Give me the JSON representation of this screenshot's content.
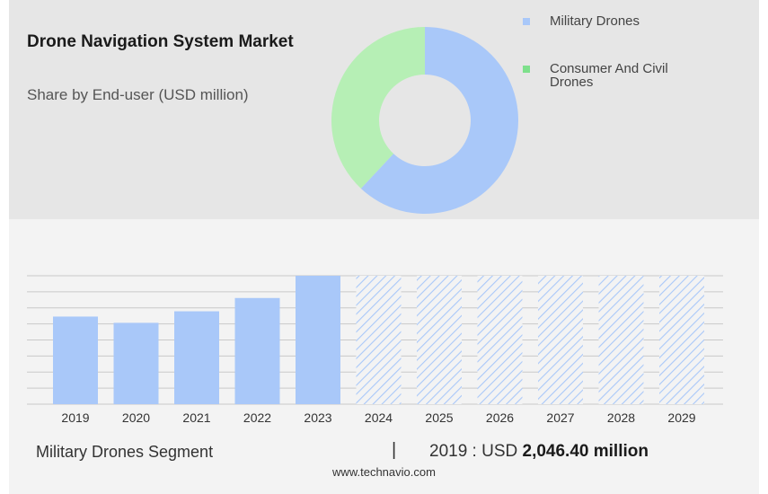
{
  "header": {
    "title": "Drone Navigation System Market",
    "subtitle": "Share by End-user (USD million)"
  },
  "legend": {
    "items": [
      {
        "label": "Military Drones",
        "color": "#a9c8f9"
      },
      {
        "label": "Consumer And Civil Drones",
        "color": "#7ee08c"
      }
    ]
  },
  "colors": {
    "military": "#a9c8f9",
    "consumer": "#b6efb5",
    "forecast_hatch": "#a9c8f9",
    "grid": "#c9c9c9",
    "axis": "#888888"
  },
  "chart_data": [
    {
      "type": "pie",
      "labels": [
        "Military Drones",
        "Consumer And Civil Drones"
      ],
      "values": [
        62,
        38
      ],
      "donut": true
    },
    {
      "type": "bar",
      "categories": [
        "2019",
        "2020",
        "2021",
        "2022",
        "2023",
        "2024",
        "2025",
        "2026",
        "2027",
        "2028",
        "2029"
      ],
      "values": [
        2046.4,
        1900,
        2170,
        2480,
        3000,
        null,
        null,
        null,
        null,
        null,
        null
      ],
      "forecast_categories": [
        "2024",
        "2025",
        "2026",
        "2027",
        "2028",
        "2029"
      ],
      "forecast_style": "hatched",
      "gridlines": 8,
      "ylim": [
        0,
        3000
      ]
    }
  ],
  "footer": {
    "segment": "Military Drones Segment",
    "separator": "|",
    "value_prefix": "2019 : USD ",
    "value": "2,046.40 million"
  },
  "source": "www.technavio.com"
}
